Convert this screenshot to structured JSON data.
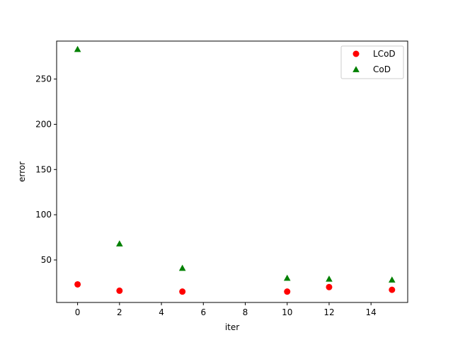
{
  "chart_data": {
    "type": "scatter",
    "title": "",
    "xlabel": "iter",
    "ylabel": "error",
    "xlim": [
      -1.0,
      15.75
    ],
    "ylim": [
      3.0,
      292.0
    ],
    "xticks": [
      0,
      2,
      4,
      6,
      8,
      10,
      12,
      14
    ],
    "yticks": [
      50,
      100,
      150,
      200,
      250
    ],
    "grid": false,
    "legend_position": "top-right",
    "series": [
      {
        "name": "LCoD",
        "marker": "circle",
        "color": "#ff0000",
        "points": [
          {
            "x": 0,
            "y": 23
          },
          {
            "x": 2,
            "y": 16
          },
          {
            "x": 5,
            "y": 15
          },
          {
            "x": 10,
            "y": 15
          },
          {
            "x": 12,
            "y": 20
          },
          {
            "x": 15,
            "y": 17
          }
        ]
      },
      {
        "name": "CoD",
        "marker": "triangle",
        "color": "#008000",
        "points": [
          {
            "x": 0,
            "y": 283
          },
          {
            "x": 2,
            "y": 68
          },
          {
            "x": 5,
            "y": 41
          },
          {
            "x": 10,
            "y": 30
          },
          {
            "x": 12,
            "y": 29
          },
          {
            "x": 15,
            "y": 28
          }
        ]
      }
    ]
  }
}
